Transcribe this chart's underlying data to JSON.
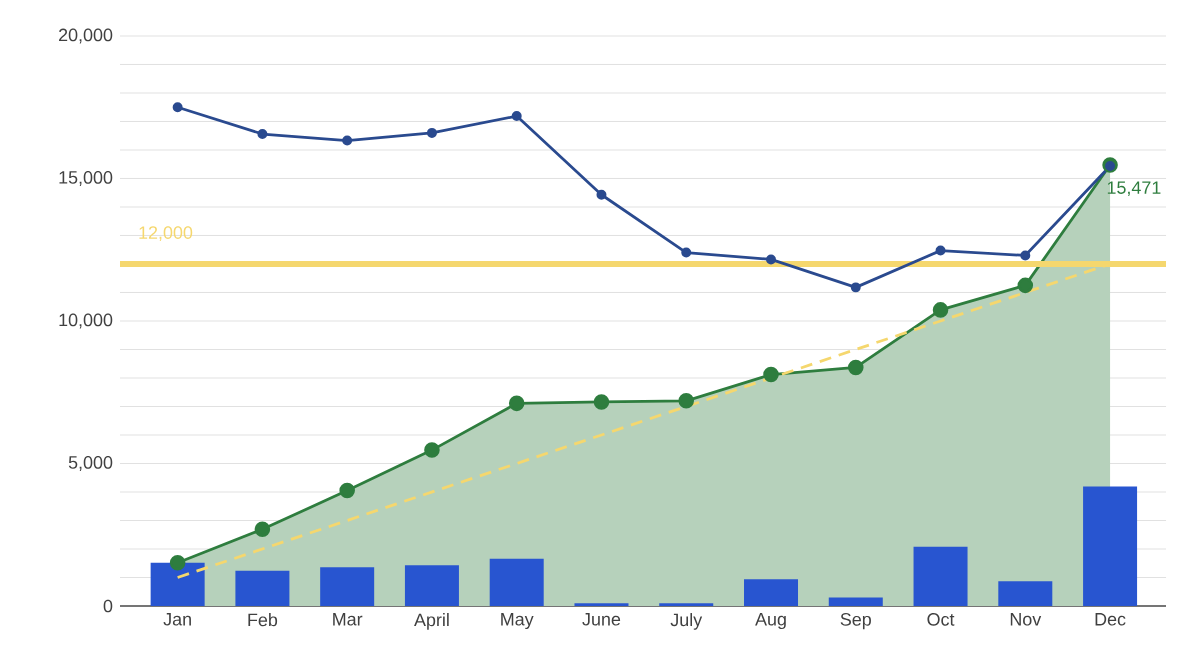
{
  "chart_data": {
    "type": "bar",
    "categories": [
      "Jan",
      "Feb",
      "Mar",
      "April",
      "May",
      "June",
      "July",
      "Aug",
      "Sep",
      "Oct",
      "Nov",
      "Dec"
    ],
    "series": [
      {
        "type": "area",
        "color": "#2e7d3e",
        "marker": "circle",
        "values": [
          1520,
          2690,
          4050,
          5470,
          7110,
          7160,
          7200,
          8120,
          8370,
          10390,
          11250,
          15471
        ]
      },
      {
        "color": "#2855d0",
        "values": [
          1520,
          1240,
          1360,
          1430,
          1660,
          100,
          100,
          940,
          300,
          2080,
          870,
          4190
        ]
      },
      {
        "type": "line",
        "color": "#2a4a8f",
        "marker": "circle",
        "values": [
          17500,
          16560,
          16330,
          16600,
          17190,
          14430,
          12400,
          12160,
          11180,
          12470,
          12300,
          15440
        ]
      },
      {
        "type": "line",
        "color": "#f5d76e",
        "line_style": "dashed",
        "marker": "none",
        "values": [
          1000,
          2000,
          3000,
          4000,
          5000,
          6000,
          7000,
          8000,
          9000,
          10000,
          11000,
          12000
        ]
      }
    ],
    "ylim": [
      0,
      20000
    ],
    "yticks": [
      {
        "value": 0,
        "label": "0"
      },
      {
        "value": 1000,
        "label": null
      },
      {
        "value": 2000,
        "label": null
      },
      {
        "value": 3000,
        "label": null
      },
      {
        "value": 4000,
        "label": null
      },
      {
        "value": 5000,
        "label": "5,000"
      },
      {
        "value": 6000,
        "label": null
      },
      {
        "value": 7000,
        "label": null
      },
      {
        "value": 8000,
        "label": null
      },
      {
        "value": 9000,
        "label": null
      },
      {
        "value": 10000,
        "label": "10,000"
      },
      {
        "value": 11000,
        "label": null
      },
      {
        "value": 12000,
        "label": null
      },
      {
        "value": 13000,
        "label": null
      },
      {
        "value": 14000,
        "label": null
      },
      {
        "value": 15000,
        "label": "15,000"
      },
      {
        "value": 16000,
        "label": null
      },
      {
        "value": 17000,
        "label": null
      },
      {
        "value": 18000,
        "label": null
      },
      {
        "value": 19000,
        "label": null
      },
      {
        "value": 20000,
        "label": "20,000"
      }
    ],
    "grid": "y",
    "ref_lines": [
      {
        "axis": "y",
        "value": 12000,
        "label": "12,000",
        "color": "#f5d76e"
      }
    ],
    "annotations": [
      {
        "text": "15,471",
        "x": "Dec",
        "y": 15471
      }
    ]
  }
}
